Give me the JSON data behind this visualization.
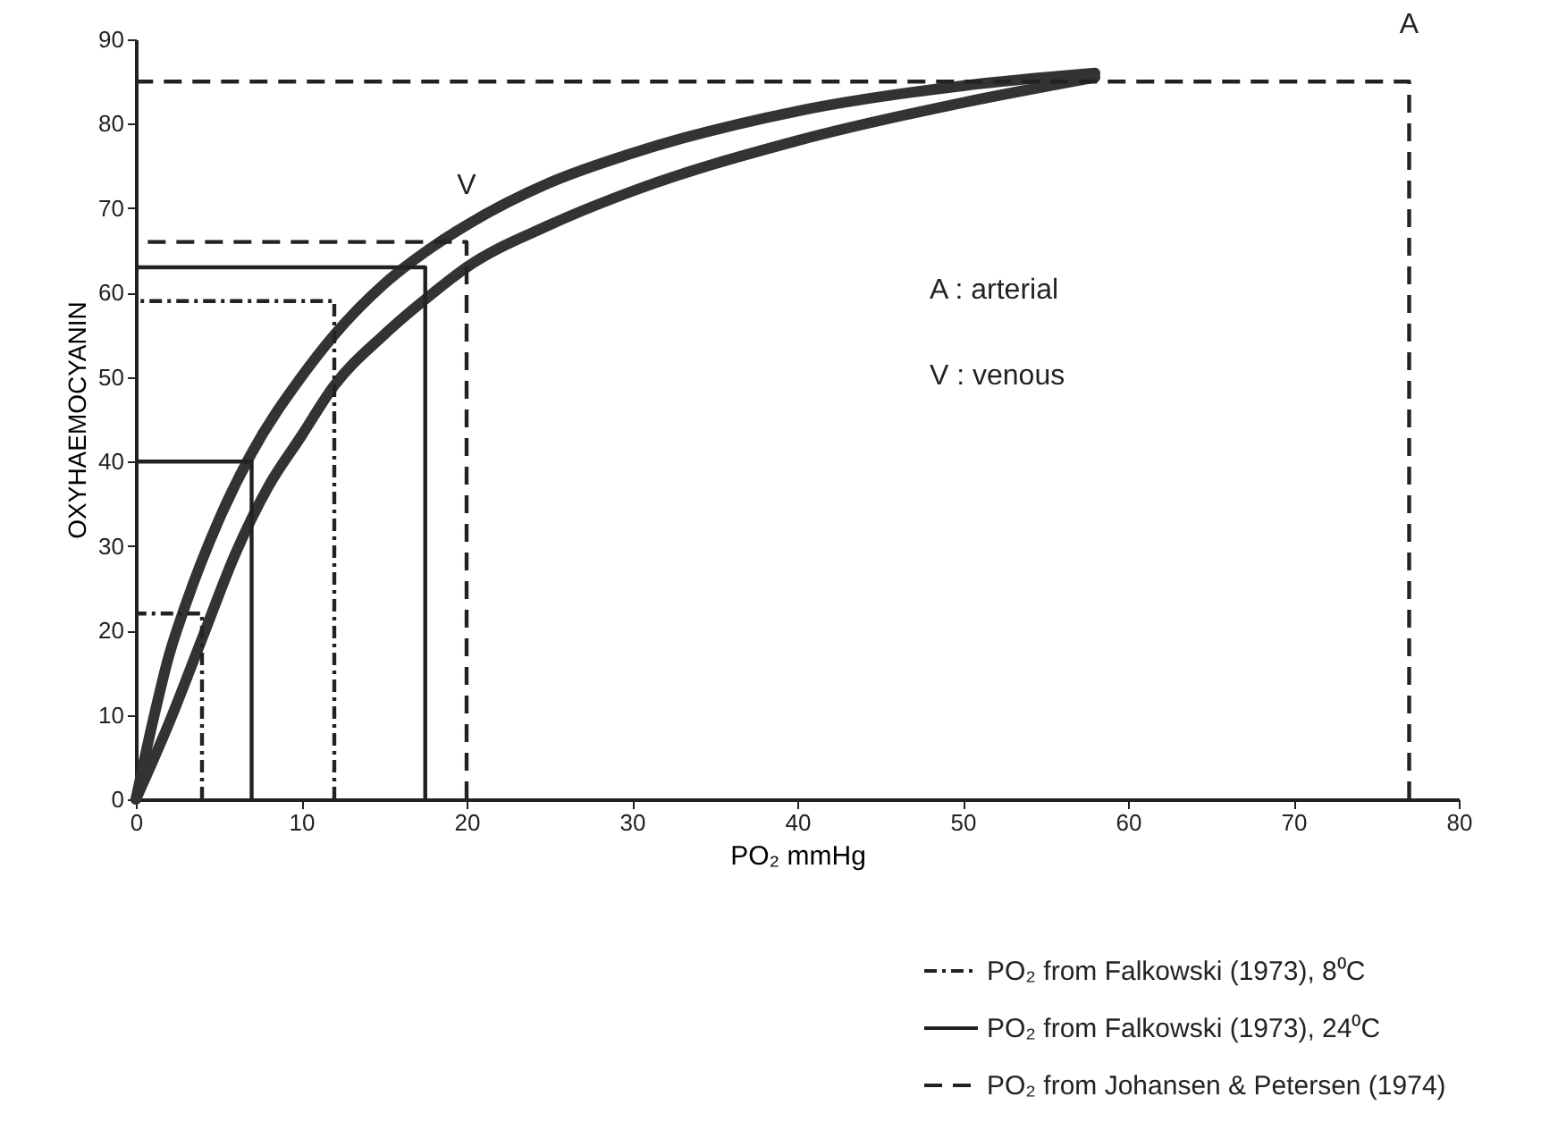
{
  "chart_data": {
    "type": "line",
    "xlabel": "PO₂ mmHg",
    "ylabel": "OXYHAEMOCYANIN",
    "xlim": [
      0,
      80
    ],
    "ylim": [
      0,
      90
    ],
    "xticks": [
      0,
      10,
      20,
      30,
      40,
      50,
      60,
      70,
      80
    ],
    "yticks": [
      0,
      10,
      20,
      30,
      40,
      50,
      60,
      70,
      80,
      90
    ],
    "grid": false,
    "legend": "bottom right",
    "marker": "none",
    "series": [
      {
        "type": "line",
        "color": "#333333",
        "line_style": "solid",
        "x": [
          0,
          1,
          2,
          3,
          5,
          7,
          10,
          12,
          15,
          18,
          20,
          25,
          30,
          40,
          50,
          58
        ],
        "values": [
          0,
          9,
          17,
          23,
          33,
          41,
          50,
          55,
          61,
          65.5,
          68,
          73,
          76.5,
          81.5,
          84.5,
          86
        ]
      },
      {
        "type": "line",
        "color": "#333333",
        "line_style": "solid",
        "x": [
          0,
          2,
          4,
          6,
          8,
          10,
          12,
          15,
          18,
          20,
          25,
          30,
          40,
          50,
          58
        ],
        "values": [
          0,
          9,
          19,
          29,
          37,
          43,
          49,
          55,
          60,
          63,
          68,
          72,
          78,
          82.5,
          85.5
        ]
      },
      {
        "type": "line",
        "name": "PO₂ from Falkowski (1973), 8⁰C",
        "color": "#222222",
        "line_style": "dotted",
        "x": [
          4,
          4,
          0,
          null,
          12,
          12,
          0
        ],
        "values": [
          0,
          22,
          22,
          null,
          0,
          59,
          59
        ]
      },
      {
        "type": "line",
        "name": "PO₂ from Falkowski (1973), 24⁰C",
        "color": "#222222",
        "line_style": "solid",
        "x": [
          7,
          7,
          0,
          null,
          17.5,
          17.5,
          0
        ],
        "values": [
          0,
          40,
          40,
          null,
          0,
          63,
          63
        ]
      },
      {
        "type": "line",
        "name": "PO₂ from Johansen & Petersen (1974)",
        "color": "#222222",
        "line_style": "dashed",
        "x": [
          20,
          20,
          0,
          null,
          77,
          77,
          0
        ],
        "values": [
          0,
          66,
          66,
          null,
          0,
          85,
          85
        ]
      }
    ],
    "annotations": [
      {
        "text": "V",
        "x": 20,
        "y": 66
      },
      {
        "text": "A",
        "x": 77,
        "y": 85
      },
      "A : arterial",
      "V : venous"
    ]
  }
}
